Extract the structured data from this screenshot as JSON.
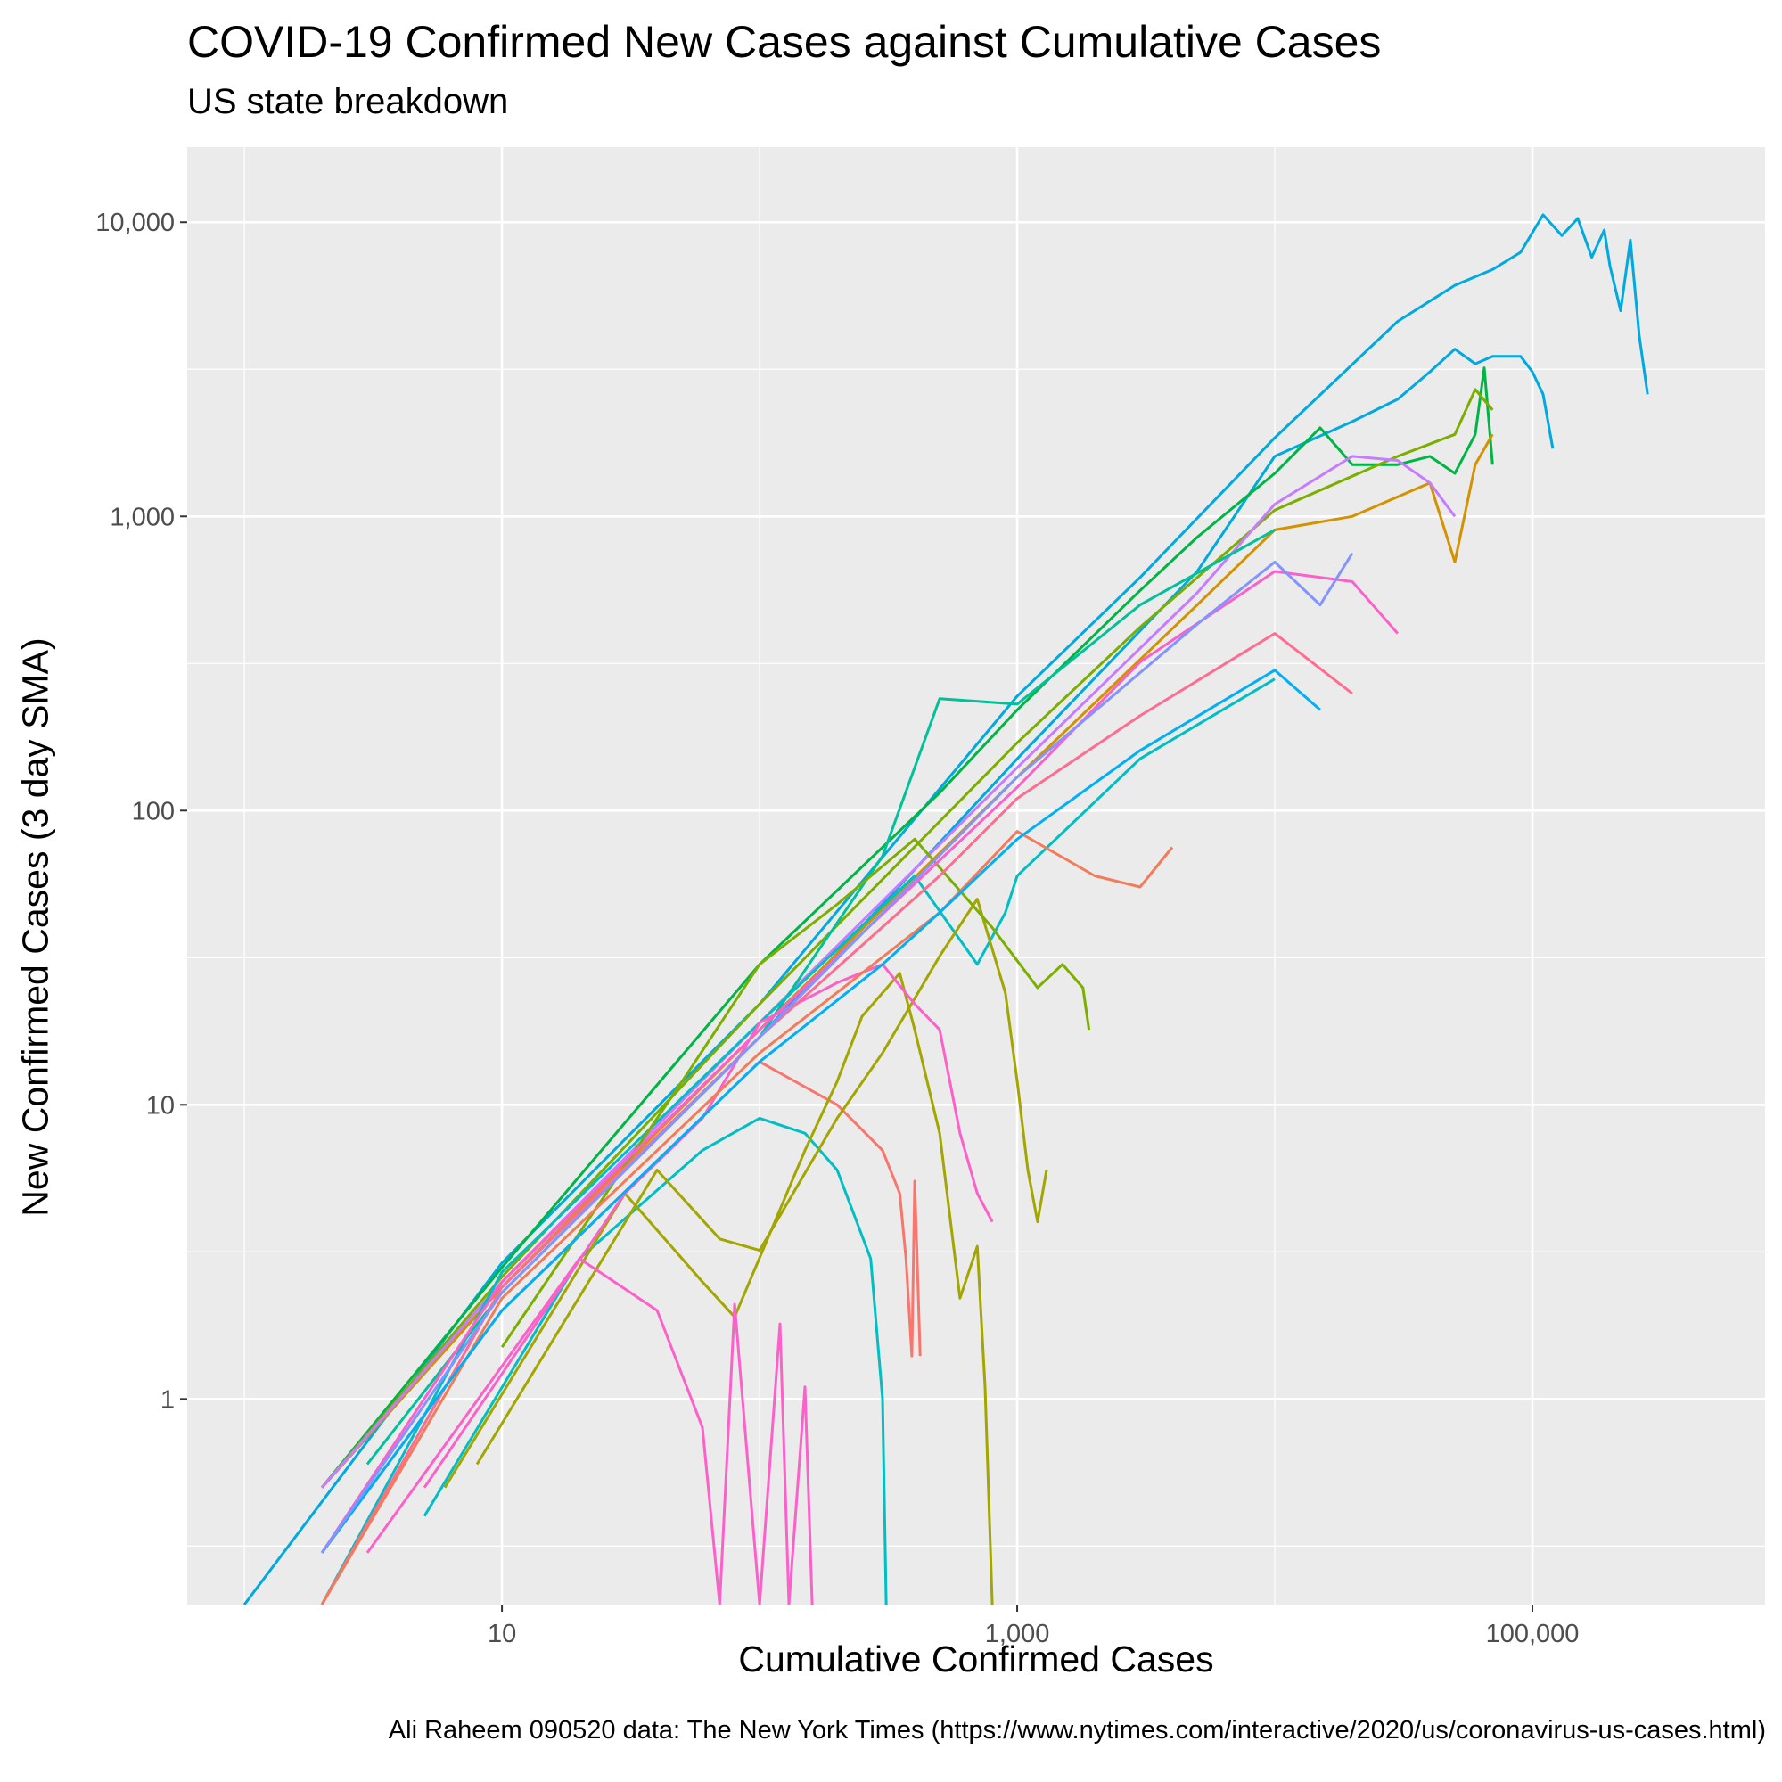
{
  "chart_data": {
    "type": "line",
    "title": "COVID-19 Confirmed New Cases against Cumulative Cases",
    "subtitle": "US state breakdown",
    "xlabel": "Cumulative Confirmed Cases",
    "ylabel": "New Confirmed Cases (3 day SMA)",
    "caption": "Ali Raheem 090520 data: The New York Times (https://www.nytimes.com/interactive/2020/us/coronavirus-us-cases.html)",
    "x_scale": "log10",
    "y_scale": "log10",
    "xlim": [
      0.6,
      800000
    ],
    "ylim": [
      0.2,
      18000
    ],
    "x_ticks": [
      10,
      1000,
      100000
    ],
    "x_tick_labels": [
      "10",
      "1,000",
      "100,000"
    ],
    "y_ticks": [
      1,
      10,
      100,
      1000,
      10000
    ],
    "y_tick_labels": [
      "1",
      "10",
      "100",
      "1,000",
      "10,000"
    ],
    "grid": true,
    "legend": "none",
    "panel_color": "#ebebeb",
    "series": [
      {
        "color": "#00a9e0",
        "points": [
          [
            1,
            0.2
          ],
          [
            10,
            2.9
          ],
          [
            100,
            22
          ],
          [
            1000,
            245
          ],
          [
            3000,
            620
          ],
          [
            10000,
            1850
          ],
          [
            30000,
            4600
          ],
          [
            50000,
            6100
          ],
          [
            70000,
            6900
          ],
          [
            90000,
            7900
          ],
          [
            110000,
            10600
          ],
          [
            130000,
            9000
          ],
          [
            150000,
            10300
          ],
          [
            170000,
            7600
          ],
          [
            190000,
            9400
          ],
          [
            200000,
            7100
          ],
          [
            220000,
            5000
          ],
          [
            240000,
            8700
          ],
          [
            260000,
            4100
          ],
          [
            280000,
            2600
          ]
        ]
      },
      {
        "color": "#00a9e0",
        "points": [
          [
            2,
            0.5
          ],
          [
            10,
            2.4
          ],
          [
            100,
            17
          ],
          [
            1000,
            150
          ],
          [
            5000,
            650
          ],
          [
            10000,
            1600
          ],
          [
            20000,
            2100
          ],
          [
            30000,
            2500
          ],
          [
            40000,
            3100
          ],
          [
            50000,
            3700
          ],
          [
            60000,
            3300
          ],
          [
            70000,
            3500
          ],
          [
            80000,
            3500
          ],
          [
            90000,
            3500
          ],
          [
            100000,
            3100
          ],
          [
            110000,
            2600
          ],
          [
            120000,
            1700
          ]
        ]
      },
      {
        "color": "#00b545",
        "points": [
          [
            2,
            0.5
          ],
          [
            10,
            2.8
          ],
          [
            100,
            30
          ],
          [
            500,
            115
          ],
          [
            1000,
            220
          ],
          [
            3000,
            560
          ],
          [
            5000,
            850
          ],
          [
            10000,
            1400
          ],
          [
            15000,
            2000
          ],
          [
            20000,
            1500
          ],
          [
            30000,
            1500
          ],
          [
            40000,
            1600
          ],
          [
            50000,
            1400
          ],
          [
            60000,
            1900
          ],
          [
            65000,
            3200
          ],
          [
            70000,
            1500
          ]
        ]
      },
      {
        "color": "#7cae00",
        "points": [
          [
            2,
            0.5
          ],
          [
            10,
            2.6
          ],
          [
            100,
            22
          ],
          [
            1000,
            170
          ],
          [
            3000,
            420
          ],
          [
            10000,
            1050
          ],
          [
            30000,
            1600
          ],
          [
            50000,
            1900
          ],
          [
            60000,
            2700
          ],
          [
            70000,
            2300
          ]
        ]
      },
      {
        "color": "#d39200",
        "points": [
          [
            2,
            0.5
          ],
          [
            10,
            2.4
          ],
          [
            100,
            18
          ],
          [
            1000,
            130
          ],
          [
            5000,
            500
          ],
          [
            10000,
            900
          ],
          [
            20000,
            1000
          ],
          [
            40000,
            1300
          ],
          [
            50000,
            700
          ],
          [
            60000,
            1500
          ],
          [
            70000,
            1900
          ]
        ]
      },
      {
        "color": "#c77cff",
        "points": [
          [
            2,
            0.5
          ],
          [
            10,
            2.5
          ],
          [
            100,
            19
          ],
          [
            1000,
            140
          ],
          [
            5000,
            550
          ],
          [
            10000,
            1100
          ],
          [
            20000,
            1600
          ],
          [
            30000,
            1550
          ],
          [
            40000,
            1300
          ],
          [
            50000,
            1000
          ]
        ]
      },
      {
        "color": "#00c19a",
        "points": [
          [
            3,
            0.6
          ],
          [
            10,
            2.3
          ],
          [
            100,
            17
          ],
          [
            300,
            70
          ],
          [
            500,
            240
          ],
          [
            1000,
            230
          ],
          [
            3000,
            500
          ],
          [
            10000,
            900
          ]
        ]
      },
      {
        "color": "#00bfc4",
        "points": [
          [
            2,
            0.2
          ],
          [
            10,
            2.7
          ],
          [
            100,
            19
          ],
          [
            400,
            60
          ],
          [
            700,
            30
          ],
          [
            900,
            45
          ],
          [
            1000,
            60
          ],
          [
            3000,
            150
          ],
          [
            10000,
            280
          ]
        ]
      },
      {
        "color": "#f8766d",
        "points": [
          [
            2,
            0.3
          ],
          [
            10,
            2.0
          ],
          [
            100,
            14
          ],
          [
            200,
            10
          ],
          [
            300,
            7
          ],
          [
            350,
            5
          ],
          [
            370,
            3
          ],
          [
            390,
            1.4
          ],
          [
            400,
            5.5
          ],
          [
            420,
            1.4
          ]
        ]
      },
      {
        "color": "#00bfc4",
        "points": [
          [
            5,
            0.4
          ],
          [
            20,
            3.0
          ],
          [
            60,
            7
          ],
          [
            100,
            9
          ],
          [
            150,
            8
          ],
          [
            200,
            6
          ],
          [
            270,
            3
          ],
          [
            300,
            1
          ],
          [
            310,
            0.2
          ]
        ]
      },
      {
        "color": "#a3a500",
        "points": [
          [
            6,
            0.5
          ],
          [
            30,
            5
          ],
          [
            60,
            2.5
          ],
          [
            80,
            1.9
          ],
          [
            150,
            7
          ],
          [
            200,
            12
          ],
          [
            250,
            20
          ],
          [
            350,
            28
          ],
          [
            400,
            18
          ],
          [
            500,
            8
          ],
          [
            600,
            2.2
          ],
          [
            700,
            3.3
          ],
          [
            750,
            1.1
          ],
          [
            800,
            0.2
          ]
        ]
      },
      {
        "color": "#a3a500",
        "points": [
          [
            8,
            0.6
          ],
          [
            40,
            6
          ],
          [
            70,
            3.5
          ],
          [
            100,
            3.2
          ],
          [
            200,
            9
          ],
          [
            300,
            15
          ],
          [
            500,
            32
          ],
          [
            700,
            50
          ],
          [
            900,
            24
          ],
          [
            1000,
            12
          ],
          [
            1100,
            6
          ],
          [
            1200,
            4
          ],
          [
            1300,
            6
          ]
        ]
      },
      {
        "color": "#7cae00",
        "points": [
          [
            10,
            1.5
          ],
          [
            50,
            12
          ],
          [
            100,
            30
          ],
          [
            200,
            48
          ],
          [
            400,
            80
          ],
          [
            800,
            40
          ],
          [
            1200,
            25
          ],
          [
            1500,
            30
          ],
          [
            1800,
            25
          ],
          [
            1900,
            18
          ]
        ]
      },
      {
        "color": "#fc61c9",
        "points": [
          [
            2,
            0.3
          ],
          [
            10,
            2.5
          ],
          [
            100,
            18
          ],
          [
            1000,
            120
          ],
          [
            3000,
            320
          ],
          [
            10000,
            650
          ],
          [
            20000,
            600
          ],
          [
            30000,
            400
          ]
        ]
      },
      {
        "color": "#fc61c9",
        "points": [
          [
            3,
            0.3
          ],
          [
            20,
            3.0
          ],
          [
            40,
            2.0
          ],
          [
            60,
            0.8
          ],
          [
            70,
            0.2
          ],
          [
            80,
            2.1
          ],
          [
            100,
            0.2
          ],
          [
            120,
            1.8
          ],
          [
            130,
            0.2
          ],
          [
            150,
            1.1
          ],
          [
            160,
            0.2
          ]
        ]
      },
      {
        "color": "#fc61c9",
        "points": [
          [
            5,
            0.5
          ],
          [
            30,
            5
          ],
          [
            60,
            9
          ],
          [
            100,
            19
          ],
          [
            200,
            26
          ],
          [
            300,
            30
          ],
          [
            400,
            22
          ],
          [
            500,
            18
          ],
          [
            600,
            8
          ],
          [
            700,
            5
          ],
          [
            800,
            4
          ]
        ]
      },
      {
        "color": "#ff6c91",
        "points": [
          [
            2,
            0.2
          ],
          [
            10,
            2.4
          ],
          [
            100,
            17
          ],
          [
            500,
            60
          ],
          [
            1000,
            110
          ],
          [
            3000,
            210
          ],
          [
            10000,
            400
          ],
          [
            20000,
            250
          ]
        ]
      },
      {
        "color": "#f37b59",
        "points": [
          [
            2,
            0.2
          ],
          [
            10,
            2.2
          ],
          [
            100,
            15
          ],
          [
            500,
            45
          ],
          [
            1000,
            85
          ],
          [
            2000,
            60
          ],
          [
            3000,
            55
          ],
          [
            4000,
            75
          ]
        ]
      },
      {
        "color": "#00b0f6",
        "points": [
          [
            2,
            0.3
          ],
          [
            10,
            2.0
          ],
          [
            100,
            14
          ],
          [
            300,
            30
          ],
          [
            500,
            45
          ],
          [
            1000,
            80
          ],
          [
            3000,
            160
          ],
          [
            10000,
            300
          ],
          [
            15000,
            220
          ]
        ]
      },
      {
        "color": "#8494ff",
        "points": [
          [
            2,
            0.3
          ],
          [
            10,
            2.3
          ],
          [
            100,
            17
          ],
          [
            1000,
            130
          ],
          [
            5000,
            430
          ],
          [
            10000,
            700
          ],
          [
            15000,
            500
          ],
          [
            20000,
            750
          ]
        ]
      }
    ]
  }
}
